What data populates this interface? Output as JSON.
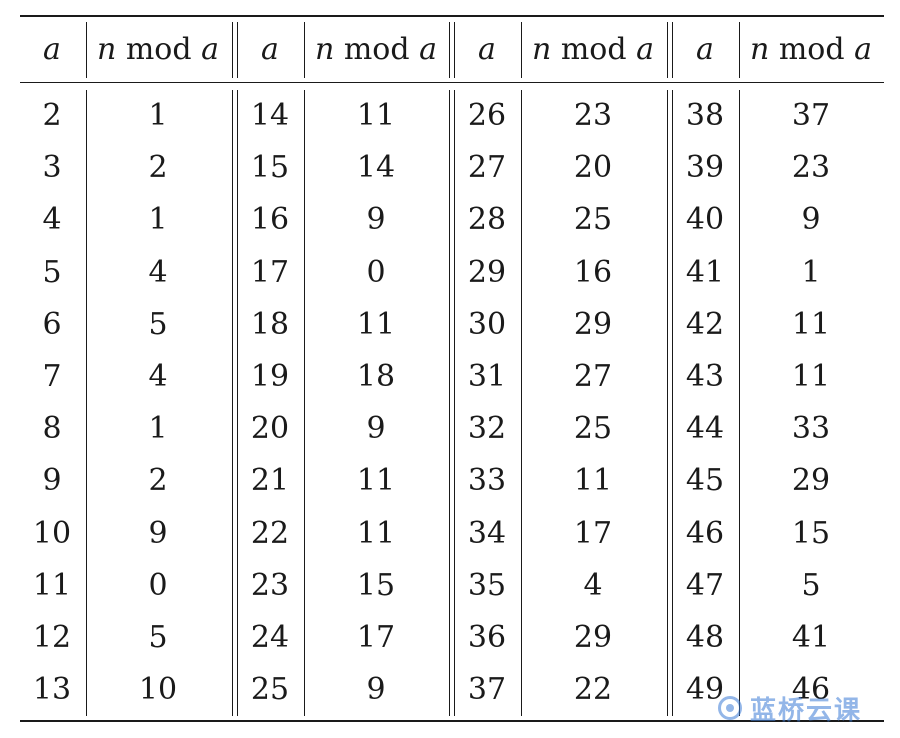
{
  "headers": {
    "a": "a",
    "n": "n",
    "mod": "mod"
  },
  "groups": [
    {
      "a": [
        "2",
        "3",
        "4",
        "5",
        "6",
        "7",
        "8",
        "9",
        "10",
        "11",
        "12",
        "13"
      ],
      "r": [
        "1",
        "2",
        "1",
        "4",
        "5",
        "4",
        "1",
        "2",
        "9",
        "0",
        "5",
        "10"
      ]
    },
    {
      "a": [
        "14",
        "15",
        "16",
        "17",
        "18",
        "19",
        "20",
        "21",
        "22",
        "23",
        "24",
        "25"
      ],
      "r": [
        "11",
        "14",
        "9",
        "0",
        "11",
        "18",
        "9",
        "11",
        "11",
        "15",
        "17",
        "9"
      ]
    },
    {
      "a": [
        "26",
        "27",
        "28",
        "29",
        "30",
        "31",
        "32",
        "33",
        "34",
        "35",
        "36",
        "37"
      ],
      "r": [
        "23",
        "20",
        "25",
        "16",
        "29",
        "27",
        "25",
        "11",
        "17",
        "4",
        "29",
        "22"
      ]
    },
    {
      "a": [
        "38",
        "39",
        "40",
        "41",
        "42",
        "43",
        "44",
        "45",
        "46",
        "47",
        "48",
        "49"
      ],
      "r": [
        "37",
        "23",
        "9",
        "1",
        "11",
        "11",
        "33",
        "29",
        "15",
        "5",
        "41",
        "46"
      ]
    }
  ],
  "watermark": {
    "text": "蓝桥云课",
    "logo_icon": "lanqiao-logo-icon",
    "color": "#3b7bd6"
  }
}
